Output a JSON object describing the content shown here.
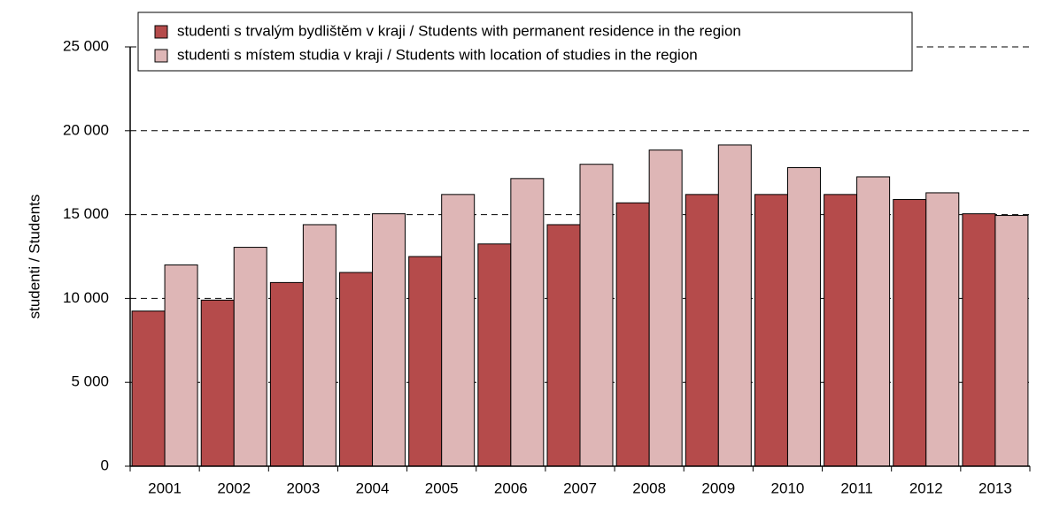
{
  "chart_data": {
    "type": "bar",
    "y_label": "studenti / Students",
    "categories": [
      "2001",
      "2002",
      "2003",
      "2004",
      "2005",
      "2006",
      "2007",
      "2008",
      "2009",
      "2010",
      "2011",
      "2012",
      "2013"
    ],
    "series": [
      {
        "name": "studenti s trvalým bydlištěm v kraji / Students with permanent residence in the region",
        "color": "#b54b4b",
        "values": [
          9250,
          9900,
          10950,
          11550,
          12500,
          13250,
          14400,
          15700,
          16200,
          16200,
          16200,
          15900,
          15050
        ]
      },
      {
        "name": "studenti s místem studia v kraji / Students with location of studies in the region",
        "color": "#deb6b6",
        "values": [
          12000,
          13050,
          14400,
          15050,
          16200,
          17150,
          18000,
          18850,
          19150,
          17800,
          17250,
          16300,
          14950
        ]
      }
    ],
    "ylim": [
      0,
      25000
    ],
    "yticks": [
      0,
      {
        "value": 5000,
        "label": "5 000"
      },
      {
        "value": 10000,
        "label": "10 000"
      },
      {
        "value": 15000,
        "label": "15 000"
      },
      {
        "value": 20000,
        "label": "20 000"
      },
      {
        "value": 25000,
        "label": "25 000"
      }
    ],
    "grid": true
  }
}
